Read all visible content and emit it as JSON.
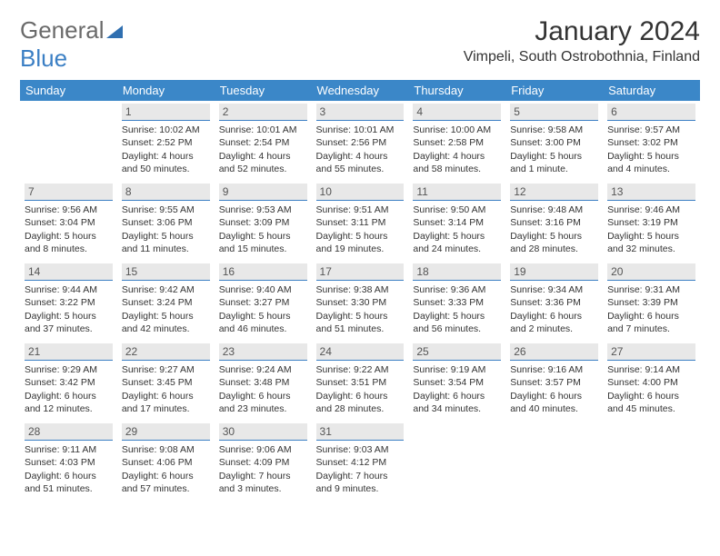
{
  "logo": {
    "line1": "General",
    "line2": "Blue"
  },
  "title": "January 2024",
  "location": "Vimpeli, South Ostrobothnia, Finland",
  "weekdays": [
    "Sunday",
    "Monday",
    "Tuesday",
    "Wednesday",
    "Thursday",
    "Friday",
    "Saturday"
  ],
  "colors": {
    "header_bg": "#3b87c8",
    "header_text": "#ffffff",
    "daynum_bg": "#e8e8e8",
    "daynum_border": "#3b7fc4",
    "logo_gray": "#6a6a6a",
    "logo_blue": "#3b7fc4"
  },
  "grid": [
    [
      null,
      {
        "n": "1",
        "sunrise": "Sunrise: 10:02 AM",
        "sunset": "Sunset: 2:52 PM",
        "day1": "Daylight: 4 hours",
        "day2": "and 50 minutes."
      },
      {
        "n": "2",
        "sunrise": "Sunrise: 10:01 AM",
        "sunset": "Sunset: 2:54 PM",
        "day1": "Daylight: 4 hours",
        "day2": "and 52 minutes."
      },
      {
        "n": "3",
        "sunrise": "Sunrise: 10:01 AM",
        "sunset": "Sunset: 2:56 PM",
        "day1": "Daylight: 4 hours",
        "day2": "and 55 minutes."
      },
      {
        "n": "4",
        "sunrise": "Sunrise: 10:00 AM",
        "sunset": "Sunset: 2:58 PM",
        "day1": "Daylight: 4 hours",
        "day2": "and 58 minutes."
      },
      {
        "n": "5",
        "sunrise": "Sunrise: 9:58 AM",
        "sunset": "Sunset: 3:00 PM",
        "day1": "Daylight: 5 hours",
        "day2": "and 1 minute."
      },
      {
        "n": "6",
        "sunrise": "Sunrise: 9:57 AM",
        "sunset": "Sunset: 3:02 PM",
        "day1": "Daylight: 5 hours",
        "day2": "and 4 minutes."
      }
    ],
    [
      {
        "n": "7",
        "sunrise": "Sunrise: 9:56 AM",
        "sunset": "Sunset: 3:04 PM",
        "day1": "Daylight: 5 hours",
        "day2": "and 8 minutes."
      },
      {
        "n": "8",
        "sunrise": "Sunrise: 9:55 AM",
        "sunset": "Sunset: 3:06 PM",
        "day1": "Daylight: 5 hours",
        "day2": "and 11 minutes."
      },
      {
        "n": "9",
        "sunrise": "Sunrise: 9:53 AM",
        "sunset": "Sunset: 3:09 PM",
        "day1": "Daylight: 5 hours",
        "day2": "and 15 minutes."
      },
      {
        "n": "10",
        "sunrise": "Sunrise: 9:51 AM",
        "sunset": "Sunset: 3:11 PM",
        "day1": "Daylight: 5 hours",
        "day2": "and 19 minutes."
      },
      {
        "n": "11",
        "sunrise": "Sunrise: 9:50 AM",
        "sunset": "Sunset: 3:14 PM",
        "day1": "Daylight: 5 hours",
        "day2": "and 24 minutes."
      },
      {
        "n": "12",
        "sunrise": "Sunrise: 9:48 AM",
        "sunset": "Sunset: 3:16 PM",
        "day1": "Daylight: 5 hours",
        "day2": "and 28 minutes."
      },
      {
        "n": "13",
        "sunrise": "Sunrise: 9:46 AM",
        "sunset": "Sunset: 3:19 PM",
        "day1": "Daylight: 5 hours",
        "day2": "and 32 minutes."
      }
    ],
    [
      {
        "n": "14",
        "sunrise": "Sunrise: 9:44 AM",
        "sunset": "Sunset: 3:22 PM",
        "day1": "Daylight: 5 hours",
        "day2": "and 37 minutes."
      },
      {
        "n": "15",
        "sunrise": "Sunrise: 9:42 AM",
        "sunset": "Sunset: 3:24 PM",
        "day1": "Daylight: 5 hours",
        "day2": "and 42 minutes."
      },
      {
        "n": "16",
        "sunrise": "Sunrise: 9:40 AM",
        "sunset": "Sunset: 3:27 PM",
        "day1": "Daylight: 5 hours",
        "day2": "and 46 minutes."
      },
      {
        "n": "17",
        "sunrise": "Sunrise: 9:38 AM",
        "sunset": "Sunset: 3:30 PM",
        "day1": "Daylight: 5 hours",
        "day2": "and 51 minutes."
      },
      {
        "n": "18",
        "sunrise": "Sunrise: 9:36 AM",
        "sunset": "Sunset: 3:33 PM",
        "day1": "Daylight: 5 hours",
        "day2": "and 56 minutes."
      },
      {
        "n": "19",
        "sunrise": "Sunrise: 9:34 AM",
        "sunset": "Sunset: 3:36 PM",
        "day1": "Daylight: 6 hours",
        "day2": "and 2 minutes."
      },
      {
        "n": "20",
        "sunrise": "Sunrise: 9:31 AM",
        "sunset": "Sunset: 3:39 PM",
        "day1": "Daylight: 6 hours",
        "day2": "and 7 minutes."
      }
    ],
    [
      {
        "n": "21",
        "sunrise": "Sunrise: 9:29 AM",
        "sunset": "Sunset: 3:42 PM",
        "day1": "Daylight: 6 hours",
        "day2": "and 12 minutes."
      },
      {
        "n": "22",
        "sunrise": "Sunrise: 9:27 AM",
        "sunset": "Sunset: 3:45 PM",
        "day1": "Daylight: 6 hours",
        "day2": "and 17 minutes."
      },
      {
        "n": "23",
        "sunrise": "Sunrise: 9:24 AM",
        "sunset": "Sunset: 3:48 PM",
        "day1": "Daylight: 6 hours",
        "day2": "and 23 minutes."
      },
      {
        "n": "24",
        "sunrise": "Sunrise: 9:22 AM",
        "sunset": "Sunset: 3:51 PM",
        "day1": "Daylight: 6 hours",
        "day2": "and 28 minutes."
      },
      {
        "n": "25",
        "sunrise": "Sunrise: 9:19 AM",
        "sunset": "Sunset: 3:54 PM",
        "day1": "Daylight: 6 hours",
        "day2": "and 34 minutes."
      },
      {
        "n": "26",
        "sunrise": "Sunrise: 9:16 AM",
        "sunset": "Sunset: 3:57 PM",
        "day1": "Daylight: 6 hours",
        "day2": "and 40 minutes."
      },
      {
        "n": "27",
        "sunrise": "Sunrise: 9:14 AM",
        "sunset": "Sunset: 4:00 PM",
        "day1": "Daylight: 6 hours",
        "day2": "and 45 minutes."
      }
    ],
    [
      {
        "n": "28",
        "sunrise": "Sunrise: 9:11 AM",
        "sunset": "Sunset: 4:03 PM",
        "day1": "Daylight: 6 hours",
        "day2": "and 51 minutes."
      },
      {
        "n": "29",
        "sunrise": "Sunrise: 9:08 AM",
        "sunset": "Sunset: 4:06 PM",
        "day1": "Daylight: 6 hours",
        "day2": "and 57 minutes."
      },
      {
        "n": "30",
        "sunrise": "Sunrise: 9:06 AM",
        "sunset": "Sunset: 4:09 PM",
        "day1": "Daylight: 7 hours",
        "day2": "and 3 minutes."
      },
      {
        "n": "31",
        "sunrise": "Sunrise: 9:03 AM",
        "sunset": "Sunset: 4:12 PM",
        "day1": "Daylight: 7 hours",
        "day2": "and 9 minutes."
      },
      null,
      null,
      null
    ]
  ]
}
